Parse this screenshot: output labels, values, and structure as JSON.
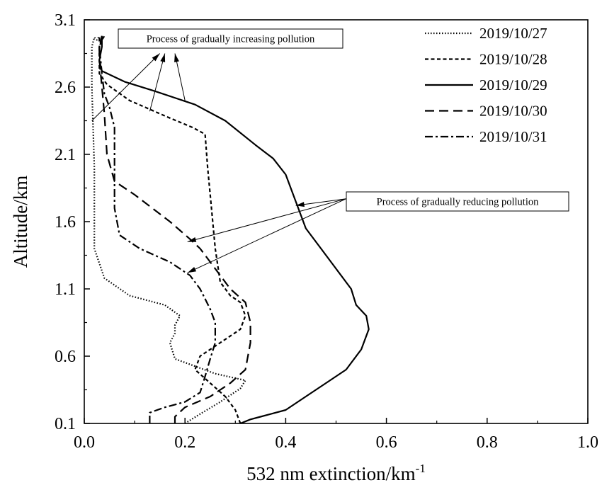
{
  "chart_data": {
    "type": "line",
    "title": "",
    "xlabel": "532 nm extinction/km",
    "xlabel_sup": "-1",
    "ylabel": "Altitude/km",
    "xlim": [
      0.0,
      1.0
    ],
    "ylim": [
      0.1,
      3.1
    ],
    "x_ticks": [
      "0.0",
      "0.2",
      "0.4",
      "0.6",
      "0.8",
      "1.0"
    ],
    "y_ticks": [
      "0.1",
      "0.6",
      "1.1",
      "1.6",
      "2.1",
      "2.6",
      "3.1"
    ],
    "grid": false,
    "legend_position": "top-right",
    "series": [
      {
        "name": "2019/10/27",
        "style": "dotted",
        "points": [
          [
            0.2,
            0.1
          ],
          [
            0.23,
            0.17
          ],
          [
            0.27,
            0.26
          ],
          [
            0.31,
            0.36
          ],
          [
            0.32,
            0.42
          ],
          [
            0.26,
            0.47
          ],
          [
            0.18,
            0.58
          ],
          [
            0.17,
            0.7
          ],
          [
            0.18,
            0.77
          ],
          [
            0.18,
            0.83
          ],
          [
            0.19,
            0.9
          ],
          [
            0.16,
            0.98
          ],
          [
            0.09,
            1.05
          ],
          [
            0.04,
            1.18
          ],
          [
            0.02,
            1.4
          ],
          [
            0.02,
            2.0
          ],
          [
            0.015,
            2.6
          ],
          [
            0.015,
            2.9
          ],
          [
            0.02,
            2.97
          ],
          [
            0.025,
            2.95
          ],
          [
            0.03,
            2.98
          ]
        ]
      },
      {
        "name": "2019/10/28",
        "style": "short-dash",
        "points": [
          [
            0.31,
            0.1
          ],
          [
            0.3,
            0.2
          ],
          [
            0.28,
            0.3
          ],
          [
            0.25,
            0.4
          ],
          [
            0.22,
            0.5
          ],
          [
            0.23,
            0.6
          ],
          [
            0.27,
            0.7
          ],
          [
            0.31,
            0.8
          ],
          [
            0.32,
            0.9
          ],
          [
            0.31,
            1.0
          ],
          [
            0.29,
            1.05
          ],
          [
            0.27,
            1.15
          ],
          [
            0.26,
            1.4
          ],
          [
            0.25,
            1.8
          ],
          [
            0.245,
            2.0
          ],
          [
            0.24,
            2.25
          ],
          [
            0.215,
            2.3
          ],
          [
            0.17,
            2.37
          ],
          [
            0.09,
            2.5
          ],
          [
            0.045,
            2.62
          ],
          [
            0.03,
            2.7
          ],
          [
            0.03,
            2.9
          ],
          [
            0.035,
            2.95
          ],
          [
            0.04,
            2.98
          ]
        ]
      },
      {
        "name": "2019/10/29",
        "style": "solid",
        "points": [
          [
            0.31,
            0.1
          ],
          [
            0.33,
            0.13
          ],
          [
            0.35,
            0.15
          ],
          [
            0.4,
            0.2
          ],
          [
            0.44,
            0.3
          ],
          [
            0.48,
            0.4
          ],
          [
            0.52,
            0.5
          ],
          [
            0.55,
            0.65
          ],
          [
            0.565,
            0.8
          ],
          [
            0.56,
            0.9
          ],
          [
            0.54,
            0.98
          ],
          [
            0.53,
            1.1
          ],
          [
            0.5,
            1.25
          ],
          [
            0.47,
            1.4
          ],
          [
            0.44,
            1.55
          ],
          [
            0.43,
            1.65
          ],
          [
            0.42,
            1.75
          ],
          [
            0.4,
            1.95
          ],
          [
            0.375,
            2.07
          ],
          [
            0.34,
            2.17
          ],
          [
            0.28,
            2.35
          ],
          [
            0.22,
            2.47
          ],
          [
            0.14,
            2.57
          ],
          [
            0.08,
            2.64
          ],
          [
            0.035,
            2.72
          ],
          [
            0.03,
            2.8
          ],
          [
            0.035,
            2.9
          ],
          [
            0.035,
            2.98
          ]
        ]
      },
      {
        "name": "2019/10/30",
        "style": "long-dash",
        "points": [
          [
            0.18,
            0.1
          ],
          [
            0.18,
            0.15
          ],
          [
            0.2,
            0.22
          ],
          [
            0.25,
            0.3
          ],
          [
            0.29,
            0.4
          ],
          [
            0.32,
            0.5
          ],
          [
            0.33,
            0.7
          ],
          [
            0.33,
            0.85
          ],
          [
            0.32,
            1.0
          ],
          [
            0.29,
            1.1
          ],
          [
            0.25,
            1.3
          ],
          [
            0.23,
            1.4
          ],
          [
            0.21,
            1.47
          ],
          [
            0.17,
            1.6
          ],
          [
            0.1,
            1.8
          ],
          [
            0.06,
            1.9
          ],
          [
            0.045,
            2.1
          ],
          [
            0.04,
            2.4
          ],
          [
            0.035,
            2.6
          ],
          [
            0.03,
            2.8
          ],
          [
            0.03,
            2.97
          ]
        ]
      },
      {
        "name": "2019/10/31",
        "style": "dash-dot",
        "points": [
          [
            0.13,
            0.1
          ],
          [
            0.13,
            0.18
          ],
          [
            0.16,
            0.22
          ],
          [
            0.2,
            0.26
          ],
          [
            0.23,
            0.33
          ],
          [
            0.24,
            0.45
          ],
          [
            0.25,
            0.58
          ],
          [
            0.26,
            0.7
          ],
          [
            0.26,
            0.85
          ],
          [
            0.25,
            0.95
          ],
          [
            0.23,
            1.1
          ],
          [
            0.21,
            1.2
          ],
          [
            0.17,
            1.3
          ],
          [
            0.11,
            1.4
          ],
          [
            0.07,
            1.5
          ],
          [
            0.06,
            1.7
          ],
          [
            0.06,
            2.0
          ],
          [
            0.06,
            2.3
          ],
          [
            0.05,
            2.45
          ],
          [
            0.04,
            2.55
          ],
          [
            0.035,
            2.7
          ],
          [
            0.03,
            2.9
          ],
          [
            0.035,
            2.98
          ]
        ]
      }
    ],
    "annotations": [
      {
        "text": "Process of gradually increasing pollution",
        "arrows": [
          [
            0.015,
            2.35,
            0.15,
            2.85
          ],
          [
            0.13,
            2.42,
            0.16,
            2.85
          ],
          [
            0.2,
            2.5,
            0.18,
            2.85
          ]
        ]
      },
      {
        "text": "Process of gradually reducing pollution",
        "arrows": [
          [
            0.52,
            1.77,
            0.42,
            1.72
          ],
          [
            0.52,
            1.77,
            0.205,
            1.45
          ],
          [
            0.52,
            1.77,
            0.205,
            1.22
          ]
        ]
      }
    ]
  }
}
